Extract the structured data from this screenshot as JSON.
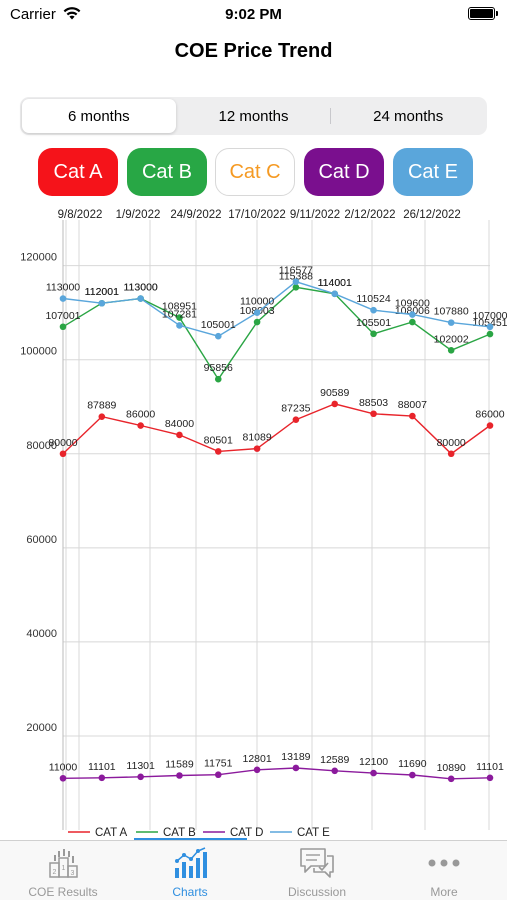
{
  "status_bar": {
    "carrier": "Carrier",
    "time": "9:02 PM"
  },
  "page": {
    "title": "COE Price Trend"
  },
  "segments": [
    {
      "label": "6 months",
      "active": true
    },
    {
      "label": "12 months",
      "active": false
    },
    {
      "label": "24 months",
      "active": false
    }
  ],
  "categories": [
    {
      "label": "Cat A",
      "color": "#f5131a",
      "outline": false
    },
    {
      "label": "Cat B",
      "color": "#28a745",
      "outline": false
    },
    {
      "label": "Cat C",
      "color": "#f59a23",
      "outline": true
    },
    {
      "label": "Cat D",
      "color": "#7a0f8e",
      "outline": false
    },
    {
      "label": "Cat E",
      "color": "#5aa6db",
      "outline": false
    }
  ],
  "chart_data": {
    "type": "line",
    "x_top_labels": [
      "9/8/2022",
      "1/9/2022",
      "24/9/2022",
      "17/10/2022",
      "9/11/2022",
      "2/12/2022",
      "26/12/2022"
    ],
    "y_ticks": [
      20000,
      40000,
      60000,
      80000,
      100000,
      120000
    ],
    "ylim": [
      0,
      128000
    ],
    "grid": true,
    "legend_position": "bottom",
    "series": [
      {
        "name": "CAT A",
        "color": "#e8242b",
        "values": [
          80000,
          87889,
          86000,
          84000,
          80501,
          81089,
          87235,
          90589,
          88503,
          88007,
          80000,
          86000
        ]
      },
      {
        "name": "CAT B",
        "color": "#2aa544",
        "values": [
          107001,
          112001,
          113000,
          108951,
          95856,
          108003,
          115388,
          114001,
          105501,
          108006,
          102002,
          105451
        ]
      },
      {
        "name": "CAT D",
        "color": "#8b1a9c",
        "values": [
          11000,
          11101,
          11301,
          11589,
          11751,
          12801,
          13189,
          12589,
          12100,
          11690,
          10890,
          11101
        ]
      },
      {
        "name": "CAT E",
        "color": "#5aa6db",
        "values": [
          113000,
          112001,
          113000,
          107281,
          105001,
          110000,
          116577,
          114001,
          110524,
          109600,
          107880,
          107000
        ]
      }
    ],
    "labels_cat_a": [
      "80000",
      "87889",
      "86000",
      "84000",
      "80501",
      "81089",
      "87235",
      "90589",
      "88503",
      "88007",
      "80000",
      "86000"
    ],
    "labels_cat_b": [
      "107001",
      "112001",
      "113000",
      "108951",
      "95856",
      "108003",
      "115388",
      "114001",
      "105501",
      "108006",
      "102002",
      "105451"
    ],
    "labels_cat_d": [
      "11000",
      "11101",
      "11301",
      "11589",
      "11751",
      "12801",
      "13189",
      "12589",
      "12100",
      "11690",
      "10890",
      "11101"
    ],
    "labels_cat_e": [
      "113000",
      "112001",
      "113000",
      "107281",
      "105001",
      "110000",
      "116577",
      "114001",
      "110524",
      "109600",
      "107880",
      "107000"
    ]
  },
  "tabs": [
    {
      "label": "COE Results",
      "icon": "podium-icon",
      "active": false
    },
    {
      "label": "Charts",
      "icon": "chart-icon",
      "active": true
    },
    {
      "label": "Discussion",
      "icon": "chat-bubbles-icon",
      "active": false
    },
    {
      "label": "More",
      "icon": "more-dots-icon",
      "active": false
    }
  ]
}
